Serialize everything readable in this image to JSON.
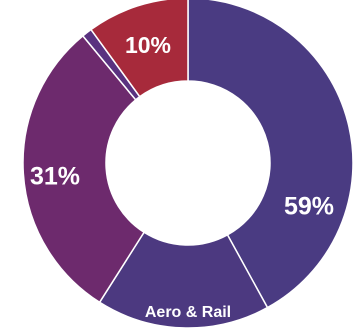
{
  "chart_data": {
    "type": "pie",
    "donut": true,
    "slices": [
      {
        "value": 42,
        "color": "#4a3b82",
        "label": "59%"
      },
      {
        "value": 17,
        "color": "#4c3980",
        "label": "Aero & Rail"
      },
      {
        "value": 30,
        "color": "#6d2a6d",
        "label": "31%"
      },
      {
        "value": 1,
        "color": "#5a3280",
        "label": ""
      },
      {
        "value": 10,
        "color": "#a72a3b",
        "label": "10%"
      }
    ],
    "title": "",
    "legend": "none"
  }
}
